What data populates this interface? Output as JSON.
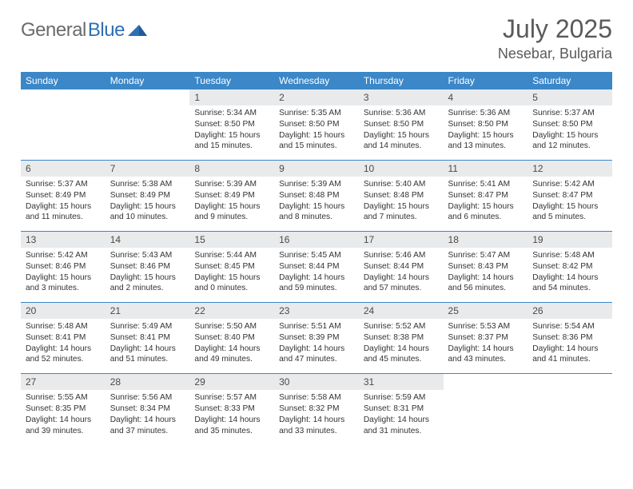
{
  "brand": {
    "left": "General",
    "right": "Blue"
  },
  "title": {
    "month": "July 2025",
    "location": "Nesebar, Bulgaria"
  },
  "colors": {
    "header_bg": "#3b87c8",
    "header_fg": "#ffffff",
    "daynum_bg": "#e9eaec",
    "text": "#333333",
    "rule": "#3b87c8",
    "logo_gray": "#6b6b6b",
    "logo_blue": "#2f6fb3"
  },
  "dow": [
    "Sunday",
    "Monday",
    "Tuesday",
    "Wednesday",
    "Thursday",
    "Friday",
    "Saturday"
  ],
  "weeks": [
    [
      {
        "n": ""
      },
      {
        "n": ""
      },
      {
        "n": "1",
        "sr": "Sunrise: 5:34 AM",
        "ss": "Sunset: 8:50 PM",
        "dl": "Daylight: 15 hours and 15 minutes."
      },
      {
        "n": "2",
        "sr": "Sunrise: 5:35 AM",
        "ss": "Sunset: 8:50 PM",
        "dl": "Daylight: 15 hours and 15 minutes."
      },
      {
        "n": "3",
        "sr": "Sunrise: 5:36 AM",
        "ss": "Sunset: 8:50 PM",
        "dl": "Daylight: 15 hours and 14 minutes."
      },
      {
        "n": "4",
        "sr": "Sunrise: 5:36 AM",
        "ss": "Sunset: 8:50 PM",
        "dl": "Daylight: 15 hours and 13 minutes."
      },
      {
        "n": "5",
        "sr": "Sunrise: 5:37 AM",
        "ss": "Sunset: 8:50 PM",
        "dl": "Daylight: 15 hours and 12 minutes."
      }
    ],
    [
      {
        "n": "6",
        "sr": "Sunrise: 5:37 AM",
        "ss": "Sunset: 8:49 PM",
        "dl": "Daylight: 15 hours and 11 minutes."
      },
      {
        "n": "7",
        "sr": "Sunrise: 5:38 AM",
        "ss": "Sunset: 8:49 PM",
        "dl": "Daylight: 15 hours and 10 minutes."
      },
      {
        "n": "8",
        "sr": "Sunrise: 5:39 AM",
        "ss": "Sunset: 8:49 PM",
        "dl": "Daylight: 15 hours and 9 minutes."
      },
      {
        "n": "9",
        "sr": "Sunrise: 5:39 AM",
        "ss": "Sunset: 8:48 PM",
        "dl": "Daylight: 15 hours and 8 minutes."
      },
      {
        "n": "10",
        "sr": "Sunrise: 5:40 AM",
        "ss": "Sunset: 8:48 PM",
        "dl": "Daylight: 15 hours and 7 minutes."
      },
      {
        "n": "11",
        "sr": "Sunrise: 5:41 AM",
        "ss": "Sunset: 8:47 PM",
        "dl": "Daylight: 15 hours and 6 minutes."
      },
      {
        "n": "12",
        "sr": "Sunrise: 5:42 AM",
        "ss": "Sunset: 8:47 PM",
        "dl": "Daylight: 15 hours and 5 minutes."
      }
    ],
    [
      {
        "n": "13",
        "sr": "Sunrise: 5:42 AM",
        "ss": "Sunset: 8:46 PM",
        "dl": "Daylight: 15 hours and 3 minutes."
      },
      {
        "n": "14",
        "sr": "Sunrise: 5:43 AM",
        "ss": "Sunset: 8:46 PM",
        "dl": "Daylight: 15 hours and 2 minutes."
      },
      {
        "n": "15",
        "sr": "Sunrise: 5:44 AM",
        "ss": "Sunset: 8:45 PM",
        "dl": "Daylight: 15 hours and 0 minutes."
      },
      {
        "n": "16",
        "sr": "Sunrise: 5:45 AM",
        "ss": "Sunset: 8:44 PM",
        "dl": "Daylight: 14 hours and 59 minutes."
      },
      {
        "n": "17",
        "sr": "Sunrise: 5:46 AM",
        "ss": "Sunset: 8:44 PM",
        "dl": "Daylight: 14 hours and 57 minutes."
      },
      {
        "n": "18",
        "sr": "Sunrise: 5:47 AM",
        "ss": "Sunset: 8:43 PM",
        "dl": "Daylight: 14 hours and 56 minutes."
      },
      {
        "n": "19",
        "sr": "Sunrise: 5:48 AM",
        "ss": "Sunset: 8:42 PM",
        "dl": "Daylight: 14 hours and 54 minutes."
      }
    ],
    [
      {
        "n": "20",
        "sr": "Sunrise: 5:48 AM",
        "ss": "Sunset: 8:41 PM",
        "dl": "Daylight: 14 hours and 52 minutes."
      },
      {
        "n": "21",
        "sr": "Sunrise: 5:49 AM",
        "ss": "Sunset: 8:41 PM",
        "dl": "Daylight: 14 hours and 51 minutes."
      },
      {
        "n": "22",
        "sr": "Sunrise: 5:50 AM",
        "ss": "Sunset: 8:40 PM",
        "dl": "Daylight: 14 hours and 49 minutes."
      },
      {
        "n": "23",
        "sr": "Sunrise: 5:51 AM",
        "ss": "Sunset: 8:39 PM",
        "dl": "Daylight: 14 hours and 47 minutes."
      },
      {
        "n": "24",
        "sr": "Sunrise: 5:52 AM",
        "ss": "Sunset: 8:38 PM",
        "dl": "Daylight: 14 hours and 45 minutes."
      },
      {
        "n": "25",
        "sr": "Sunrise: 5:53 AM",
        "ss": "Sunset: 8:37 PM",
        "dl": "Daylight: 14 hours and 43 minutes."
      },
      {
        "n": "26",
        "sr": "Sunrise: 5:54 AM",
        "ss": "Sunset: 8:36 PM",
        "dl": "Daylight: 14 hours and 41 minutes."
      }
    ],
    [
      {
        "n": "27",
        "sr": "Sunrise: 5:55 AM",
        "ss": "Sunset: 8:35 PM",
        "dl": "Daylight: 14 hours and 39 minutes."
      },
      {
        "n": "28",
        "sr": "Sunrise: 5:56 AM",
        "ss": "Sunset: 8:34 PM",
        "dl": "Daylight: 14 hours and 37 minutes."
      },
      {
        "n": "29",
        "sr": "Sunrise: 5:57 AM",
        "ss": "Sunset: 8:33 PM",
        "dl": "Daylight: 14 hours and 35 minutes."
      },
      {
        "n": "30",
        "sr": "Sunrise: 5:58 AM",
        "ss": "Sunset: 8:32 PM",
        "dl": "Daylight: 14 hours and 33 minutes."
      },
      {
        "n": "31",
        "sr": "Sunrise: 5:59 AM",
        "ss": "Sunset: 8:31 PM",
        "dl": "Daylight: 14 hours and 31 minutes."
      },
      {
        "n": ""
      },
      {
        "n": ""
      }
    ]
  ]
}
